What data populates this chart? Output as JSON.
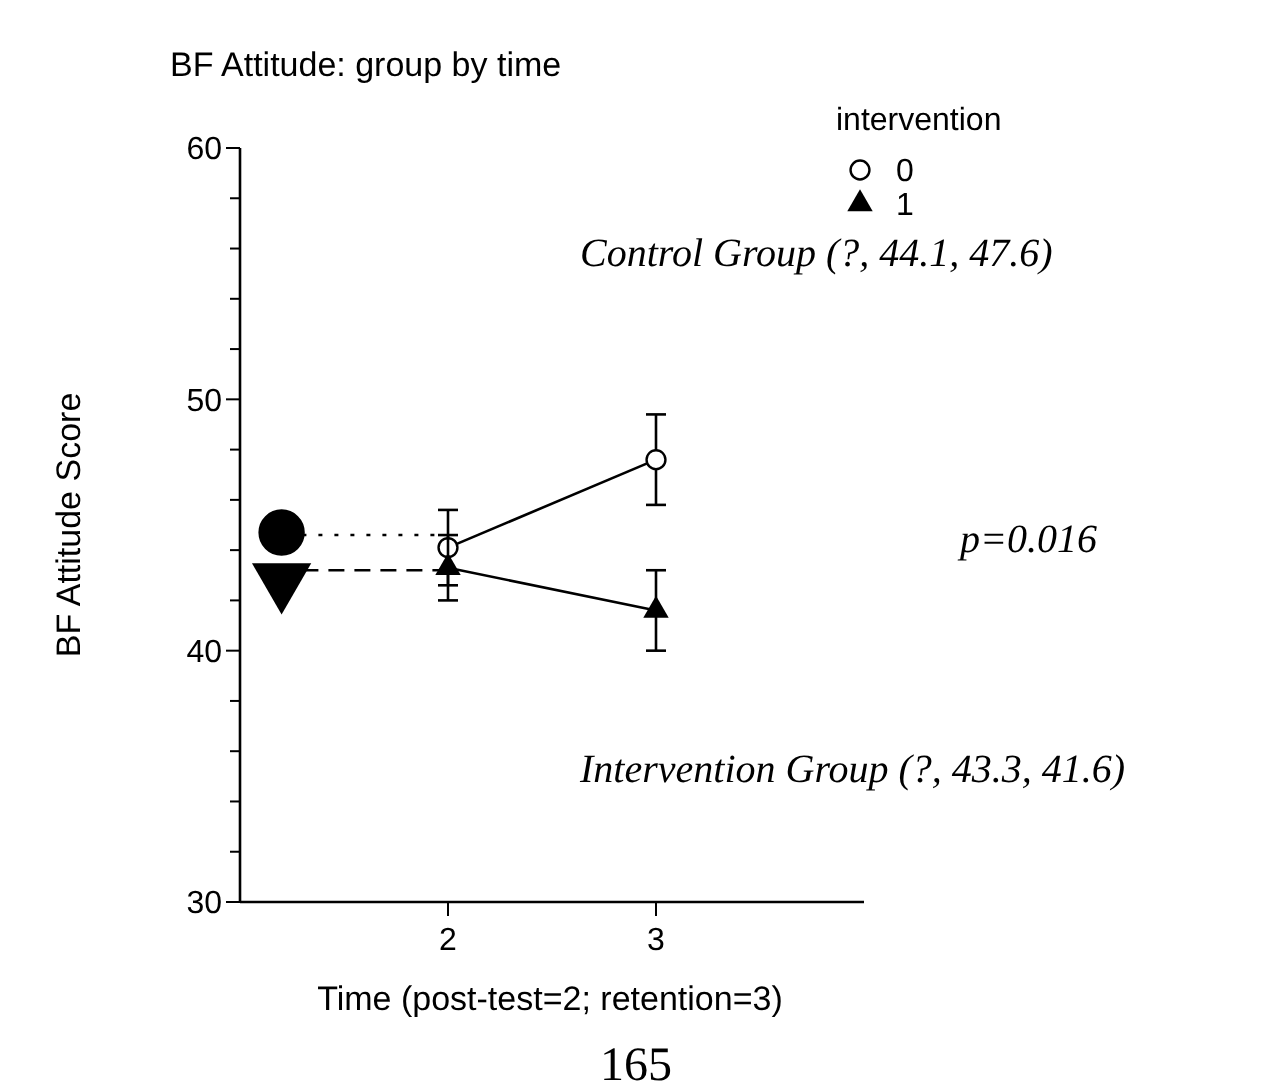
{
  "chart_data": {
    "type": "line",
    "title": "BF Attitude: group by time",
    "xlabel": "Time (post-test=2; retention=3)",
    "ylabel": "BF Attitude Score",
    "legend_title": "intervention",
    "legend": "top right",
    "xlim": [
      1,
      4
    ],
    "xticks": [
      2,
      3
    ],
    "ylim": [
      30,
      60
    ],
    "yticks": [
      30,
      {
        "value": 32,
        "label": null
      },
      {
        "value": 34,
        "label": null
      },
      {
        "value": 36,
        "label": null
      },
      {
        "value": 38,
        "label": null
      },
      40,
      {
        "value": 42,
        "label": null
      },
      {
        "value": 44,
        "label": null
      },
      {
        "value": 46,
        "label": null
      },
      {
        "value": 48,
        "label": null
      },
      50,
      {
        "value": 52,
        "label": null
      },
      {
        "value": 54,
        "label": null
      },
      {
        "value": 56,
        "label": null
      },
      {
        "value": 58,
        "label": null
      },
      60
    ],
    "series": [
      {
        "name": "0",
        "color": "#000000",
        "marker": "circle",
        "line_style": "solid",
        "x": [
          2,
          3
        ],
        "values": [
          44.1,
          47.6
        ],
        "errors": [
          1.5,
          1.8
        ]
      },
      {
        "name": "1",
        "color": "#000000",
        "marker": "triangle",
        "line_style": "solid",
        "x": [
          2,
          3
        ],
        "values": [
          43.3,
          41.6
        ],
        "errors": [
          1.3,
          1.6
        ]
      },
      {
        "type": "line",
        "color": "#000000",
        "marker": "none",
        "line_style": "dotted",
        "x": [
          1.3,
          1.97
        ],
        "values": [
          44.6,
          44.6
        ]
      },
      {
        "type": "line",
        "color": "#000000",
        "marker": "none",
        "line_style": "dashed",
        "x": [
          1.3,
          1.97
        ],
        "values": [
          43.2,
          43.2
        ]
      },
      {
        "type": "scatter",
        "color": "#000000",
        "marker": "circle",
        "x": [
          1.2
        ],
        "values": [
          44.7
        ]
      },
      {
        "type": "scatter",
        "color": "#000000",
        "marker": "triangle",
        "x": [
          1.2
        ],
        "values": [
          42.8
        ]
      }
    ],
    "annotations": [
      "Control Group (?, 44.1, 47.6)",
      "p=0.016",
      "Intervention Group (?, 43.3, 41.6)",
      "165"
    ]
  }
}
